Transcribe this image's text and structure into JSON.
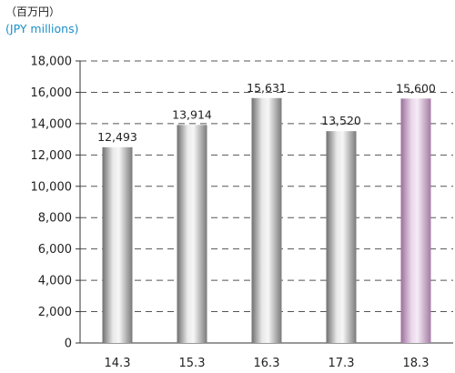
{
  "units": {
    "jp": "（百万円）",
    "en": "(JPY millions)"
  },
  "chart_data": {
    "type": "bar",
    "categories": [
      "14.3",
      "15.3",
      "16.3",
      "17.3",
      "18.3"
    ],
    "values": [
      12493,
      13914,
      15631,
      13520,
      15600
    ],
    "value_labels": [
      "12,493",
      "13,914",
      "15,631",
      "13,520",
      "15,600"
    ],
    "ylim": [
      0,
      18000
    ],
    "y_ticks": [
      0,
      2000,
      4000,
      6000,
      8000,
      10000,
      12000,
      14000,
      16000,
      18000
    ],
    "y_tick_labels": [
      "0",
      "2,000",
      "4,000",
      "6,000",
      "8,000",
      "10,000",
      "12,000",
      "14,000",
      "16,000",
      "18,000"
    ],
    "grid": "dashed horizontal",
    "legend": "none",
    "colors": {
      "actual_bar": "#9a9a9a",
      "forecast_bar": "#c9a3c9",
      "highlighted_category": "18.3"
    }
  }
}
